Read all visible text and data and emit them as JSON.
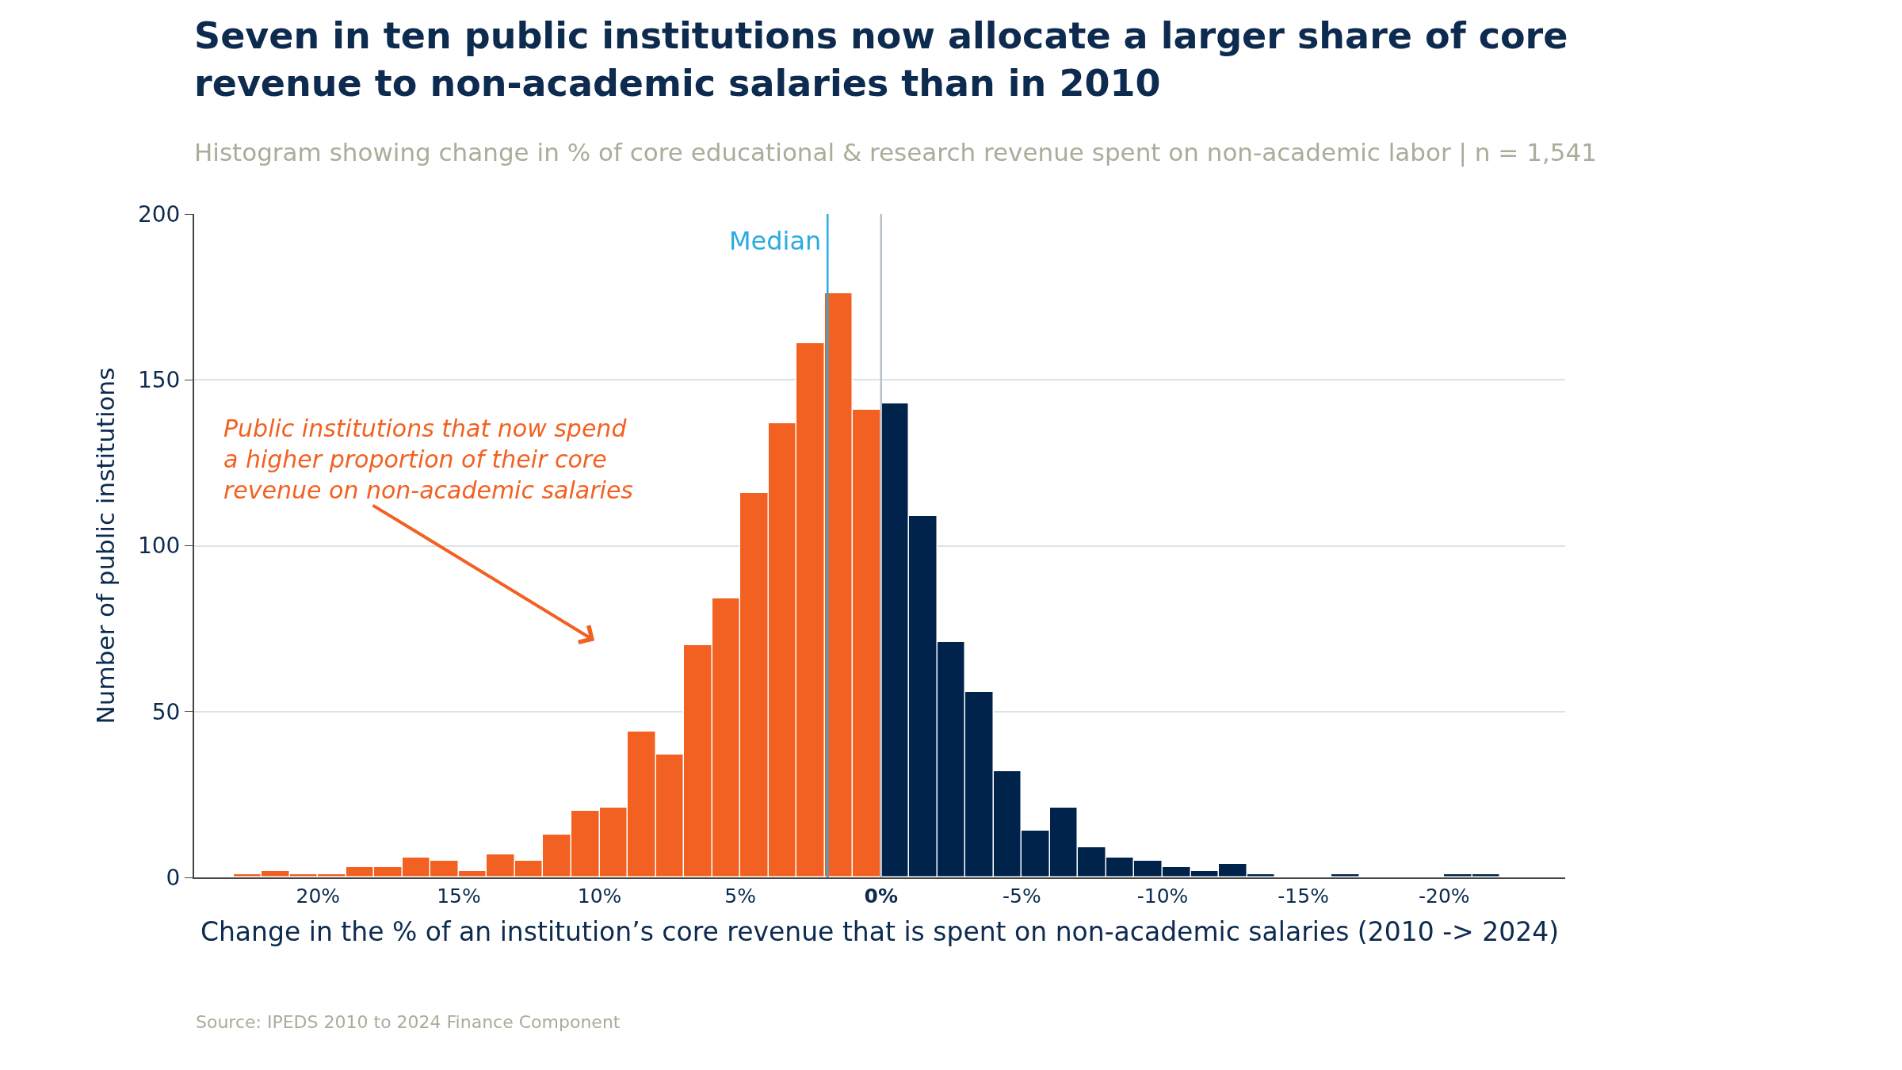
{
  "chart_data": {
    "type": "histogram",
    "title": "Seven in ten public institutions now allocate a larger share of core\nrevenue to non-academic salaries than in 2010",
    "subtitle": "Histogram showing change in % of core educational & research revenue spent on non-academic labor | n = 1,541",
    "xlabel": "Change in the % of an institution’s core revenue that is spent on non-academic salaries (2010 -> 2024)",
    "ylabel": "Number of public institutions",
    "bins": [
      -22,
      -21,
      -20,
      -19,
      -18,
      -17,
      -16,
      -15,
      -14,
      -13,
      -12,
      -11,
      -10,
      -9,
      -8,
      -7,
      -6,
      -5,
      -4,
      -3,
      -2,
      -1,
      0,
      1,
      2,
      3,
      4,
      5,
      6,
      7,
      8,
      9,
      10,
      11,
      12,
      13,
      14,
      15,
      16,
      17,
      18,
      19,
      20,
      21,
      22,
      23
    ],
    "values": [
      1,
      1,
      0,
      0,
      0,
      1,
      0,
      0,
      1,
      4,
      2,
      3,
      5,
      6,
      9,
      21,
      14,
      32,
      56,
      71,
      109,
      143,
      141,
      176,
      161,
      137,
      116,
      84,
      70,
      37,
      44,
      21,
      20,
      13,
      5,
      7,
      2,
      5,
      6,
      3,
      3,
      1,
      1,
      2,
      1
    ],
    "colors": [
      "#00234b",
      "#00234b",
      "#00234b",
      "#00234b",
      "#00234b",
      "#00234b",
      "#00234b",
      "#00234b",
      "#00234b",
      "#00234b",
      "#00234b",
      "#00234b",
      "#00234b",
      "#00234b",
      "#00234b",
      "#00234b",
      "#00234b",
      "#00234b",
      "#00234b",
      "#00234b",
      "#00234b",
      "#00234b",
      "#f26122",
      "#f26122",
      "#f26122",
      "#f26122",
      "#f26122",
      "#f26122",
      "#f26122",
      "#f26122",
      "#f26122",
      "#f26122",
      "#f26122",
      "#f26122",
      "#f26122",
      "#f26122",
      "#f26122",
      "#f26122",
      "#f26122",
      "#f26122",
      "#f26122",
      "#f26122",
      "#f26122",
      "#f26122",
      "#f26122"
    ],
    "xlim": [
      24.4,
      -24.3
    ],
    "xticks": [
      {
        "value": 20,
        "label": "20%"
      },
      {
        "value": 15,
        "label": "15%"
      },
      {
        "value": 10,
        "label": "10%"
      },
      {
        "value": 5,
        "label": "5%"
      },
      {
        "value": 0,
        "label": "0%"
      },
      {
        "value": -5,
        "label": "-5%"
      },
      {
        "value": -10,
        "label": "-10%"
      },
      {
        "value": -15,
        "label": "-15%"
      },
      {
        "value": -20,
        "label": "-20%"
      }
    ],
    "ylim": [
      0,
      200
    ],
    "yticks": [
      0,
      50,
      100,
      150,
      200
    ],
    "grid": "y",
    "ref_lines": [
      {
        "axis": "x",
        "value": 1.9,
        "label": "Median",
        "color": "#29abe2"
      },
      {
        "axis": "x",
        "value": 0,
        "color": "#b8c0cc"
      }
    ],
    "annotations": [
      "Public institutions that now spend\na higher proportion of their core\nrevenue on non-academic salaries",
      "Source: IPEDS 2010 to 2024 Finance Component"
    ]
  }
}
